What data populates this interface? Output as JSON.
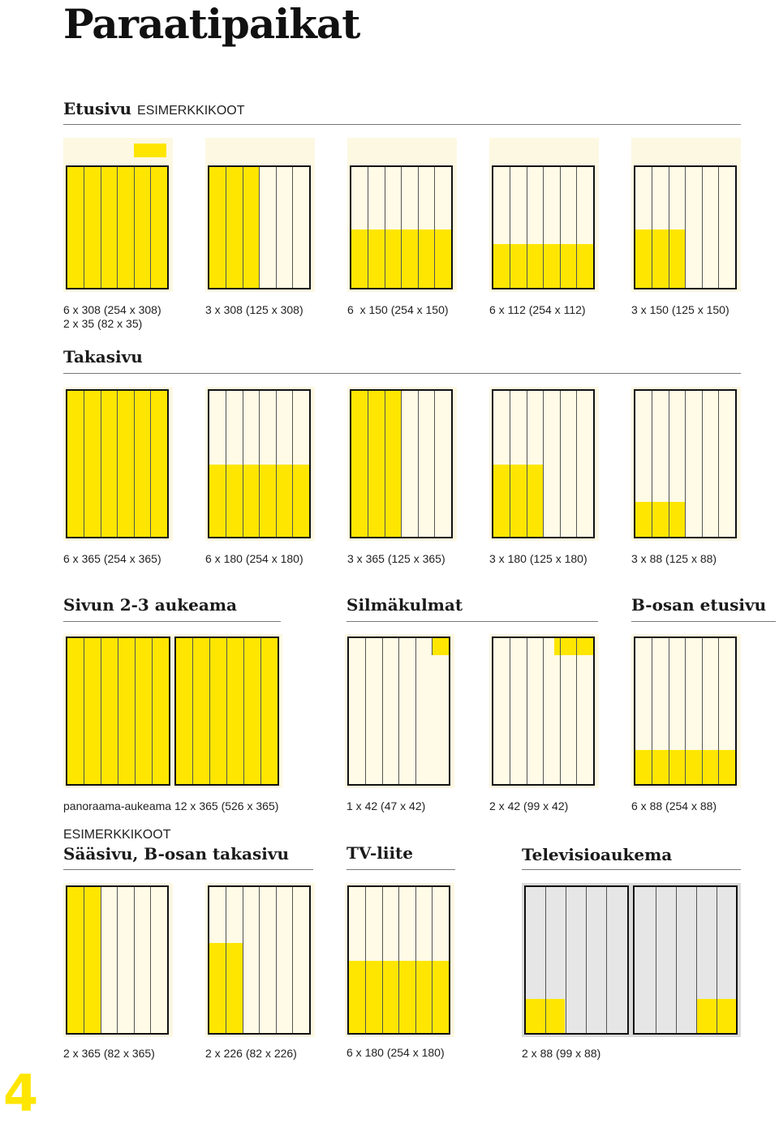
{
  "page": {
    "title": "Paraatipaikat",
    "page_number": "4",
    "highlight_color": "#ffe600",
    "paper_color": "#fffbe6"
  },
  "sections": {
    "etusivu": {
      "title": "Etusivu",
      "subtitle": "ESIMERKKIKOOT"
    },
    "takasivu": {
      "title": "Takasivu"
    },
    "sivun23": {
      "title": "Sivun 2-3 aukeama"
    },
    "silmakulmat": {
      "title": "Silmäkulmat"
    },
    "bosan_etusivu": {
      "title": "B-osan etusivu"
    },
    "saasivu": {
      "subtitle": "ESIMERKKIKOOT",
      "title": "Sääsivu, B-osan takasivu"
    },
    "tvliite": {
      "title": "TV-liite"
    },
    "televisioaukema": {
      "title": "Televisioaukema"
    }
  },
  "captions": {
    "e1": "6 x 308 (254 x 308)",
    "e1b": "2 x 35 (82 x 35)",
    "e2": "3 x 308 (125 x 308)",
    "e3": "6  x 150 (254 x 150)",
    "e4": "6 x 112 (254 x 112)",
    "e5": "3 x 150 (125 x 150)",
    "t1": "6 x 365 (254 x 365)",
    "t2": "6 x 180 (254 x 180)",
    "t3": "3 x 365 (125 x 365)",
    "t4": "3 x 180 (125 x 180)",
    "t5": "3 x 88 (125 x 88)",
    "a1": "panoraama-aukeama 12 x 365 (526 x 365)",
    "s1": "1 x 42 (47 x 42)",
    "s2": "2 x 42 (99 x 42)",
    "b1": "6 x 88 (254 x 88)",
    "q1": "2 x 365 (82 x 365)",
    "q2": "2 x 226 (82 x 226)",
    "q3": "6 x 180 (254 x 180)",
    "q4": "2 x 88 (99 x 88)"
  }
}
